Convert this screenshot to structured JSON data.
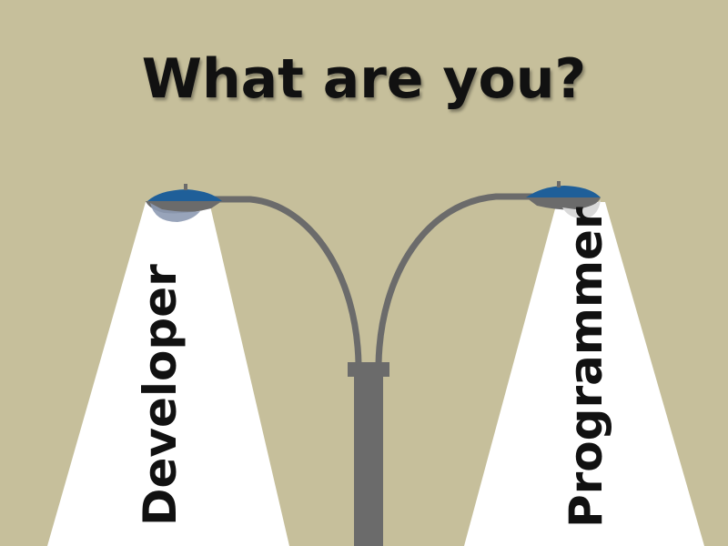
{
  "title": "What are you?",
  "labels": {
    "left": "Developer",
    "right": "Programmer"
  },
  "colors": {
    "background": "#c6bf9b",
    "pole": "#6b6b6b",
    "lamp_shade": "#1f5f99",
    "beam": "#ffffff",
    "text": "#111111"
  },
  "icons": {
    "left_lamp": "street-lamp-icon",
    "right_lamp": "street-lamp-icon",
    "pole": "lamp-post"
  }
}
